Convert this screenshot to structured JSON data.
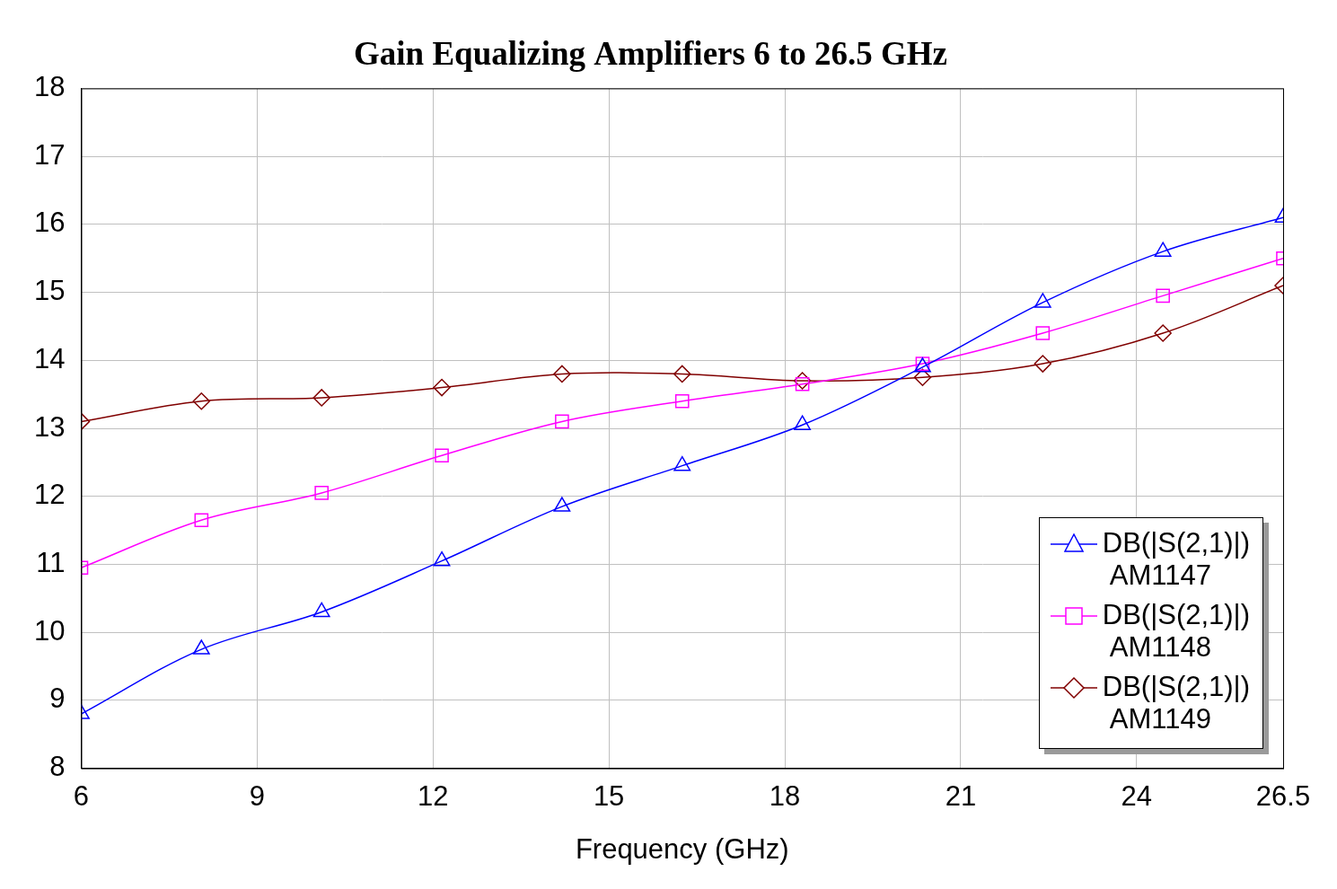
{
  "chart_data": {
    "type": "line",
    "title": "Gain Equalizing Amplifiers 6 to 26.5 GHz",
    "x_label": "Frequency (GHz)",
    "x": [
      6,
      8.05,
      10.1,
      12.15,
      14.2,
      16.25,
      18.3,
      20.35,
      22.4,
      24.45,
      26.5
    ],
    "series": [
      {
        "name": "DB(|S(2,1)|) AM1147",
        "color": "#0000ff",
        "marker": "triangle",
        "values": [
          8.8,
          9.75,
          10.3,
          11.05,
          11.85,
          12.45,
          13.05,
          13.9,
          14.85,
          15.6,
          16.1
        ]
      },
      {
        "name": "DB(|S(2,1)|) AM1148",
        "color": "#ff00ff",
        "marker": "square",
        "values": [
          10.95,
          11.65,
          12.05,
          12.6,
          13.1,
          13.4,
          13.65,
          13.95,
          14.4,
          14.95,
          15.5
        ]
      },
      {
        "name": "DB(|S(2,1)|) AM1149",
        "color": "#800000",
        "marker": "diamond",
        "values": [
          13.1,
          13.4,
          13.45,
          13.6,
          13.8,
          13.8,
          13.7,
          13.75,
          13.95,
          14.4,
          15.1
        ]
      }
    ],
    "xlim": [
      6,
      26.5
    ],
    "xticks": [
      6,
      9,
      12,
      15,
      18,
      21,
      24,
      26.5
    ],
    "ylim": [
      8,
      18
    ],
    "yticks": [
      8,
      9,
      10,
      11,
      12,
      13,
      14,
      15,
      16,
      17,
      18
    ],
    "grid": true,
    "legend": "lower right"
  }
}
